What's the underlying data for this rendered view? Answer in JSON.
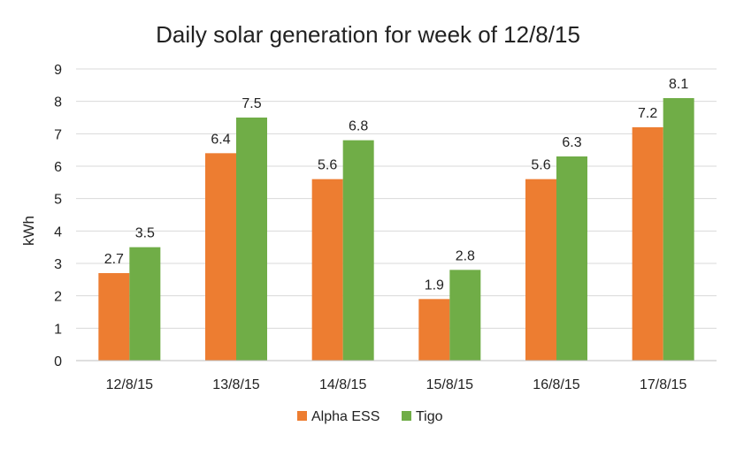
{
  "chart_data": {
    "type": "bar",
    "title": "Daily solar generation for week of 12/8/15",
    "xlabel": "",
    "ylabel": "kWh",
    "ylim": [
      0,
      9
    ],
    "yticks": [
      "0",
      "1",
      "2",
      "3",
      "4",
      "5",
      "6",
      "7",
      "8",
      "9"
    ],
    "categories": [
      "12/8/15",
      "13/8/15",
      "14/8/15",
      "15/8/15",
      "16/8/15",
      "17/8/15"
    ],
    "series": [
      {
        "name": "Alpha ESS",
        "color": "#ED7D31",
        "values": [
          2.7,
          6.4,
          5.6,
          1.9,
          5.6,
          7.2
        ]
      },
      {
        "name": "Tigo",
        "color": "#70AD47",
        "values": [
          3.5,
          7.5,
          6.8,
          2.8,
          6.3,
          8.1
        ]
      }
    ],
    "data_labels": true,
    "grid": true,
    "legend": "bottom"
  }
}
